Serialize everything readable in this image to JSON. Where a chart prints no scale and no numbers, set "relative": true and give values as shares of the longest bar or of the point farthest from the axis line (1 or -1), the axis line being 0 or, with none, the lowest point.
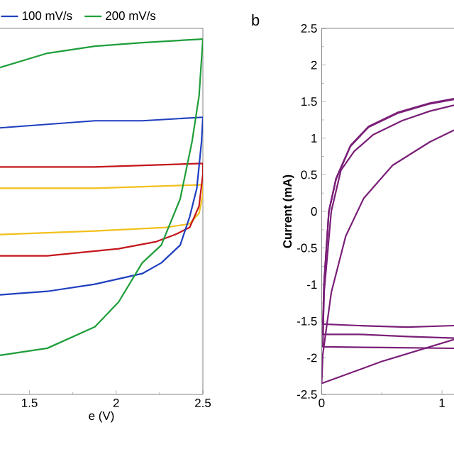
{
  "chart_data": [
    {
      "type": "line",
      "xlabel": "e (V)",
      "relative": true,
      "xlim": [
        1.33,
        2.5
      ],
      "xticks": [
        1.5,
        2,
        2.5
      ],
      "tick_labels": "x",
      "legend": "top",
      "series": [
        {
          "color": "#f2c01c",
          "x": [
            1.33,
            1.877,
            2.5,
            2.5,
            2.478,
            2.424,
            2.287,
            1.877,
            1.33
          ],
          "values": [
            0.58,
            0.58,
            0.59,
            0.56,
            0.51,
            0.48,
            0.47,
            0.46,
            0.45
          ]
        },
        {
          "color": "#c4161c",
          "x": [
            1.33,
            1.877,
            2.5,
            2.5,
            2.478,
            2.424,
            2.342,
            2.232,
            2.014,
            1.603,
            1.33
          ],
          "values": [
            0.64,
            0.64,
            0.65,
            0.62,
            0.53,
            0.47,
            0.45,
            0.43,
            0.41,
            0.39,
            0.39
          ]
        },
        {
          "name": "100 mV/s",
          "color": "#1f3fbf",
          "x": [
            1.33,
            1.603,
            1.877,
            2.15,
            2.5,
            2.492,
            2.465,
            2.424,
            2.369,
            2.26,
            2.15,
            1.877,
            1.603,
            1.33
          ],
          "values": [
            0.75,
            0.76,
            0.77,
            0.77,
            0.78,
            0.71,
            0.58,
            0.5,
            0.42,
            0.37,
            0.34,
            0.31,
            0.29,
            0.28
          ]
        },
        {
          "name": "200 mV/s",
          "color": "#1e9e3a",
          "x": [
            1.33,
            1.603,
            1.877,
            2.15,
            2.5,
            2.478,
            2.437,
            2.369,
            2.26,
            2.15,
            2.014,
            1.877,
            1.603,
            1.33
          ],
          "values": [
            0.92,
            0.96,
            0.98,
            0.99,
            1.0,
            0.84,
            0.71,
            0.55,
            0.42,
            0.37,
            0.26,
            0.19,
            0.13,
            0.11
          ]
        }
      ]
    },
    {
      "type": "line",
      "title": "b",
      "ylabel": "Current (mA)",
      "xlim": [
        0,
        1.1
      ],
      "ylim": [
        -2.5,
        2.5
      ],
      "xticks": [
        0,
        1
      ],
      "yticks": [
        -2.5,
        -2,
        -1.5,
        -1,
        -0.5,
        0,
        0.5,
        1,
        1.5,
        2,
        2.5
      ],
      "series": [
        {
          "color": "#7a1f78",
          "x": [
            1.1,
            0.71,
            0.31,
            0.01,
            0.02,
            0.06,
            0.12,
            0.24,
            0.39,
            0.63,
            0.9,
            1.1
          ],
          "values": [
            -1.56,
            -1.58,
            -1.56,
            -1.54,
            -0.98,
            0.0,
            0.44,
            0.89,
            1.15,
            1.34,
            1.47,
            1.53
          ]
        },
        {
          "color": "#7a1f78",
          "x": [
            1.1,
            0.71,
            0.31,
            0.01,
            0.02,
            0.08,
            0.16,
            0.27,
            0.43,
            0.67,
            0.9,
            1.1
          ],
          "values": [
            -1.73,
            -1.71,
            -1.68,
            -1.68,
            -1.11,
            0.0,
            0.56,
            0.82,
            1.05,
            1.24,
            1.37,
            1.45
          ]
        },
        {
          "color": "#7a1f78",
          "x": [
            1.1,
            0.5,
            0.01,
            0.02,
            0.06,
            0.12,
            0.24,
            0.39,
            0.63,
            0.9,
            1.1
          ],
          "values": [
            -1.87,
            -1.86,
            -1.85,
            -1.0,
            0.0,
            0.45,
            0.9,
            1.16,
            1.35,
            1.48,
            1.54
          ]
        },
        {
          "color": "#7a1f78",
          "x": [
            1.1,
            0.5,
            0.0,
            0.01,
            0.08,
            0.2,
            0.35,
            0.59,
            0.9,
            1.1
          ],
          "values": [
            -1.75,
            -2.05,
            -2.35,
            -1.95,
            -1.11,
            -0.34,
            0.18,
            0.63,
            0.95,
            1.11
          ]
        }
      ]
    }
  ]
}
